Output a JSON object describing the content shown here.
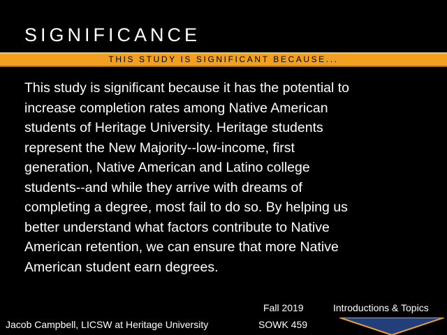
{
  "slide": {
    "title": "SIGNIFICANCE",
    "subtitle": "THIS STUDY IS SIGNIFICANT BECAUSE...",
    "body_lines": [
      "This study is significant because it has the potential to",
      "increase completion rates among Native American",
      "students of Heritage University. Heritage students",
      "represent the New Majority--low-income, first",
      "generation, Native American and Latino college",
      "students--and while they arrive with dreams of",
      "completing a degree, most fail to do so. By helping us",
      "better understand what factors contribute to Native",
      "American retention, we can ensure that more Native",
      "American student earn degrees."
    ]
  },
  "footer": {
    "author": "Jacob Campbell, LICSW at Heritage University",
    "term": "Fall 2019",
    "course": "SOWK 459",
    "section": "Introductions & Topics"
  },
  "colors": {
    "background": "#000000",
    "accent_band": "#f2a021",
    "chevron_fill": "#233f7a",
    "chevron_stroke": "#f2a021"
  }
}
